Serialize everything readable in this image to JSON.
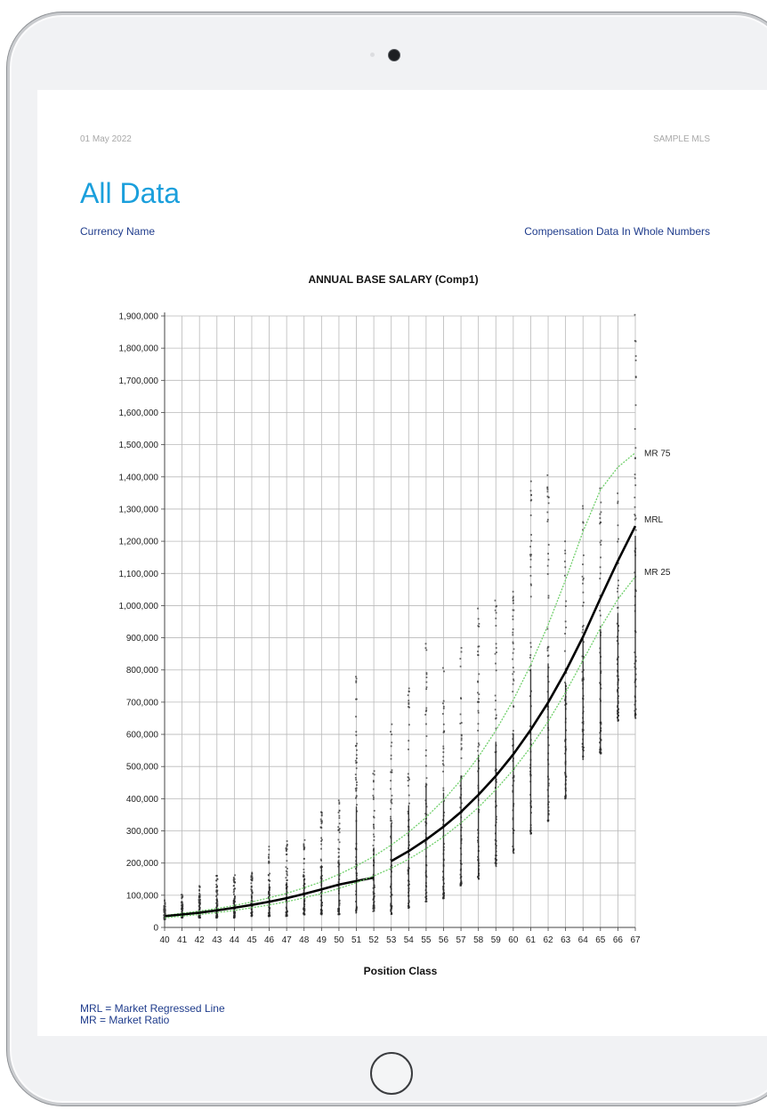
{
  "report": {
    "date": "01 May 2022",
    "organization": "SAMPLE MLS",
    "title": "All Data",
    "currency_label": "Currency Name",
    "compensation_label": "Compensation Data In Whole Numbers"
  },
  "notes": [
    "MRL = Market Regressed Line",
    "MR = Market Ratio"
  ],
  "colors": {
    "title": "#1a9fdc",
    "link_text": "#1f3c8c",
    "mrl_line": "#000000",
    "mr_band": "#6fcf6a",
    "points": "#333333"
  },
  "chart_data": {
    "type": "scatter",
    "title": "ANNUAL BASE SALARY (Comp1)",
    "xlabel": "Position Class",
    "ylabel": "",
    "xlim": [
      40,
      67
    ],
    "ylim": [
      0,
      1900000
    ],
    "x_ticks": [
      40,
      41,
      42,
      43,
      44,
      45,
      46,
      47,
      48,
      49,
      50,
      51,
      52,
      53,
      54,
      55,
      56,
      57,
      58,
      59,
      60,
      61,
      62,
      63,
      64,
      65,
      66,
      67
    ],
    "y_ticks": [
      {
        "value": 0,
        "label": "0"
      },
      {
        "value": 100000,
        "label": "100,000"
      },
      {
        "value": 200000,
        "label": "200,000"
      },
      {
        "value": 300000,
        "label": "300,000"
      },
      {
        "value": 400000,
        "label": "400,000"
      },
      {
        "value": 500000,
        "label": "500,000"
      },
      {
        "value": 600000,
        "label": "600,000"
      },
      {
        "value": 700000,
        "label": "700,000"
      },
      {
        "value": 800000,
        "label": "800,000"
      },
      {
        "value": 900000,
        "label": "900,000"
      },
      {
        "value": 1000000,
        "label": "1,000,000"
      },
      {
        "value": 1100000,
        "label": "1,100,000"
      },
      {
        "value": 1200000,
        "label": "1,200,000"
      },
      {
        "value": 1300000,
        "label": "1,300,000"
      },
      {
        "value": 1400000,
        "label": "1,400,000"
      },
      {
        "value": 1500000,
        "label": "1,500,000"
      },
      {
        "value": 1600000,
        "label": "1,600,000"
      },
      {
        "value": 1700000,
        "label": "1,700,000"
      },
      {
        "value": 1800000,
        "label": "1,800,000"
      },
      {
        "value": 1900000,
        "label": "1,900,000"
      }
    ],
    "grid": true,
    "series": [
      {
        "name": "MR 75",
        "style": "dotted-green",
        "x": [
          40,
          41,
          42,
          43,
          44,
          45,
          46,
          47,
          48,
          49,
          50,
          51,
          52,
          53,
          54,
          55,
          56,
          57,
          58,
          59,
          60,
          61,
          62,
          63,
          64,
          65,
          66,
          67
        ],
        "y": [
          37000,
          44000,
          51000,
          59000,
          68000,
          79000,
          92000,
          106000,
          123000,
          142000,
          165000,
          191000,
          221000,
          256000,
          296000,
          342000,
          396000,
          458000,
          530000,
          612000,
          707000,
          816000,
          940000,
          1080000,
          1230000,
          1360000,
          1430000,
          1475000
        ]
      },
      {
        "name": "MRL",
        "style": "solid-black",
        "segments": [
          {
            "x": [
              40,
              41,
              42,
              43,
              44,
              45,
              46,
              47,
              48,
              49,
              50,
              51,
              52
            ],
            "y": [
              35000,
              40000,
              46000,
              53000,
              61000,
              70000,
              80000,
              91000,
              104000,
              118000,
              133000,
              144000,
              155000
            ]
          },
          {
            "x": [
              53,
              54,
              55,
              56,
              57,
              58,
              59,
              60,
              61,
              62,
              63,
              64,
              65,
              66,
              67
            ],
            "y": [
              206000,
              237000,
              273000,
              313000,
              359000,
              412000,
              471000,
              538000,
              614000,
              699000,
              795000,
              903000,
              1023000,
              1139000,
              1247000
            ]
          }
        ]
      },
      {
        "name": "MR 25",
        "style": "dotted-green",
        "x": [
          40,
          41,
          42,
          43,
          44,
          45,
          46,
          47,
          48,
          49,
          50,
          51,
          52,
          53,
          54,
          55,
          56,
          57,
          58,
          59,
          60,
          61,
          62,
          63,
          64,
          65,
          66,
          67
        ],
        "y": [
          30000,
          35000,
          40000,
          46000,
          53000,
          61000,
          70000,
          80000,
          92000,
          105000,
          121000,
          139000,
          160000,
          184000,
          212000,
          245000,
          282000,
          325000,
          373000,
          428000,
          490000,
          560000,
          640000,
          730000,
          830000,
          930000,
          1020000,
          1090000
        ]
      }
    ],
    "point_ranges": [
      {
        "x": 40,
        "low": 25000,
        "high": 85000
      },
      {
        "x": 41,
        "low": 30000,
        "high": 105000
      },
      {
        "x": 42,
        "low": 30000,
        "high": 130000
      },
      {
        "x": 43,
        "low": 30000,
        "high": 170000
      },
      {
        "x": 44,
        "low": 30000,
        "high": 165000
      },
      {
        "x": 45,
        "low": 35000,
        "high": 175000
      },
      {
        "x": 46,
        "low": 35000,
        "high": 260000
      },
      {
        "x": 47,
        "low": 35000,
        "high": 270000
      },
      {
        "x": 48,
        "low": 40000,
        "high": 285000
      },
      {
        "x": 49,
        "low": 40000,
        "high": 380000
      },
      {
        "x": 50,
        "low": 40000,
        "high": 405000
      },
      {
        "x": 51,
        "low": 45000,
        "high": 780000
      },
      {
        "x": 52,
        "low": 50000,
        "high": 490000
      },
      {
        "x": 53,
        "low": 40000,
        "high": 670000
      },
      {
        "x": 54,
        "low": 60000,
        "high": 770000
      },
      {
        "x": 55,
        "low": 80000,
        "high": 900000
      },
      {
        "x": 56,
        "low": 90000,
        "high": 820000
      },
      {
        "x": 57,
        "low": 130000,
        "high": 890000
      },
      {
        "x": 58,
        "low": 150000,
        "high": 1010000
      },
      {
        "x": 59,
        "low": 190000,
        "high": 1050000
      },
      {
        "x": 60,
        "low": 230000,
        "high": 1050000
      },
      {
        "x": 61,
        "low": 290000,
        "high": 1430000
      },
      {
        "x": 62,
        "low": 330000,
        "high": 1420000
      },
      {
        "x": 63,
        "low": 400000,
        "high": 1200000
      },
      {
        "x": 64,
        "low": 520000,
        "high": 1340000
      },
      {
        "x": 65,
        "low": 540000,
        "high": 1400000
      },
      {
        "x": 66,
        "low": 640000,
        "high": 1390000
      },
      {
        "x": 67,
        "low": 650000,
        "high": 1910000
      }
    ],
    "line_labels": [
      {
        "text": "MR 75",
        "series": "MR 75"
      },
      {
        "text": "MRL",
        "series": "MRL"
      },
      {
        "text": "MR 25",
        "series": "MR 25"
      }
    ]
  }
}
